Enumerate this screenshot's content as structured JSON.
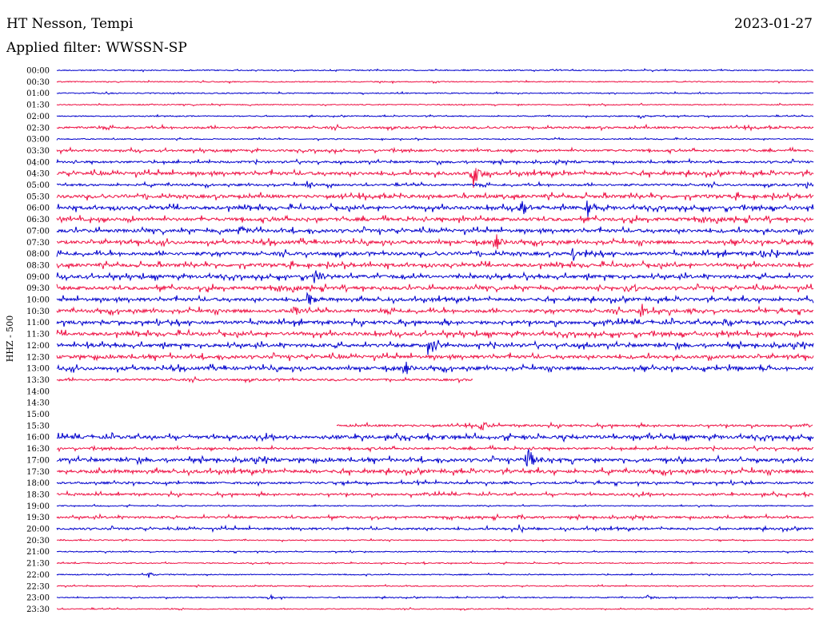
{
  "header": {
    "station": "HT Nesson, Tempi",
    "date": "2023-01-27",
    "filter_text": "Applied filter: WWSSN-SP"
  },
  "chart_data": {
    "type": "line",
    "title": "",
    "ylabel": "HHZ - 500",
    "xlabel": "",
    "row_labels": [
      "00:00",
      "00:30",
      "01:00",
      "01:30",
      "02:00",
      "02:30",
      "03:00",
      "03:30",
      "04:00",
      "04:30",
      "05:00",
      "05:30",
      "06:00",
      "06:30",
      "07:00",
      "07:30",
      "08:00",
      "08:30",
      "09:00",
      "09:30",
      "10:00",
      "10:30",
      "11:00",
      "11:30",
      "12:00",
      "12:30",
      "13:00",
      "13:30",
      "14:00",
      "14:30",
      "15:00",
      "15:30",
      "16:00",
      "16:30",
      "17:00",
      "17:30",
      "18:00",
      "18:30",
      "19:00",
      "19:30",
      "20:00",
      "20:30",
      "21:00",
      "21:30",
      "22:00",
      "22:30",
      "23:00",
      "23:30"
    ],
    "colors": [
      "#0000cc",
      "#ee1144"
    ],
    "noise_level": [
      1,
      1,
      1,
      1,
      1,
      2,
      1,
      2,
      2,
      3,
      2,
      3,
      3,
      3,
      3,
      3,
      3,
      3,
      3,
      3,
      3,
      3,
      3,
      3,
      3,
      3,
      3,
      2,
      0,
      0,
      0,
      2,
      3,
      2,
      3,
      3,
      2,
      2,
      1,
      2,
      2,
      1,
      1,
      1,
      1,
      1,
      1,
      1
    ],
    "trace_start": [
      0,
      0,
      0,
      0,
      0,
      0,
      0,
      0,
      0,
      0,
      0,
      0,
      0,
      0,
      0,
      0,
      0,
      0,
      0,
      0,
      0,
      0,
      0,
      0,
      0,
      0,
      0,
      0,
      0,
      0,
      0,
      0.37,
      0,
      0,
      0,
      0,
      0,
      0,
      0,
      0,
      0,
      0,
      0,
      0,
      0,
      0,
      0,
      0
    ],
    "trace_end": [
      1,
      1,
      1,
      1,
      1,
      1,
      1,
      1,
      1,
      1,
      1,
      1,
      1,
      1,
      1,
      1,
      1,
      1,
      1,
      1,
      1,
      1,
      1,
      1,
      1,
      1,
      1,
      0.55,
      0,
      0,
      0,
      1,
      1,
      1,
      1,
      1,
      1,
      1,
      1,
      1,
      1,
      1,
      1,
      1,
      1,
      1,
      1,
      1
    ],
    "events": [
      {
        "row": 4,
        "t": 0.77,
        "amp": 4
      },
      {
        "row": 9,
        "t": 0.55,
        "amp": 20
      },
      {
        "row": 10,
        "t": 0.33,
        "amp": 5
      },
      {
        "row": 10,
        "t": 0.99,
        "amp": 8
      },
      {
        "row": 12,
        "t": 0.61,
        "amp": 18
      },
      {
        "row": 12,
        "t": 0.7,
        "amp": 18
      },
      {
        "row": 13,
        "t": 0.53,
        "amp": 10
      },
      {
        "row": 14,
        "t": 0.24,
        "amp": 10
      },
      {
        "row": 15,
        "t": 0.58,
        "amp": 14
      },
      {
        "row": 15,
        "t": 0.96,
        "amp": 6
      },
      {
        "row": 16,
        "t": 0.68,
        "amp": 12
      },
      {
        "row": 16,
        "t": 0.93,
        "amp": 8
      },
      {
        "row": 18,
        "t": 0.34,
        "amp": 14
      },
      {
        "row": 19,
        "t": 0.76,
        "amp": 6
      },
      {
        "row": 20,
        "t": 0.33,
        "amp": 14
      },
      {
        "row": 21,
        "t": 0.31,
        "amp": 14
      },
      {
        "row": 21,
        "t": 0.77,
        "amp": 12
      },
      {
        "row": 22,
        "t": 0.88,
        "amp": 6
      },
      {
        "row": 24,
        "t": 0.49,
        "amp": 24
      },
      {
        "row": 24,
        "t": 0.04,
        "amp": 6
      },
      {
        "row": 26,
        "t": 0.46,
        "amp": 12
      },
      {
        "row": 26,
        "t": 0.93,
        "amp": 6
      },
      {
        "row": 31,
        "t": 0.56,
        "amp": 8
      },
      {
        "row": 32,
        "t": 0.78,
        "amp": 6
      },
      {
        "row": 34,
        "t": 0.62,
        "amp": 22
      },
      {
        "row": 39,
        "t": 0.61,
        "amp": 6
      },
      {
        "row": 40,
        "t": 0.61,
        "amp": 6
      },
      {
        "row": 44,
        "t": 0.12,
        "amp": 4
      },
      {
        "row": 46,
        "t": 0.28,
        "amp": 5
      },
      {
        "row": 46,
        "t": 0.78,
        "amp": 4
      }
    ]
  }
}
